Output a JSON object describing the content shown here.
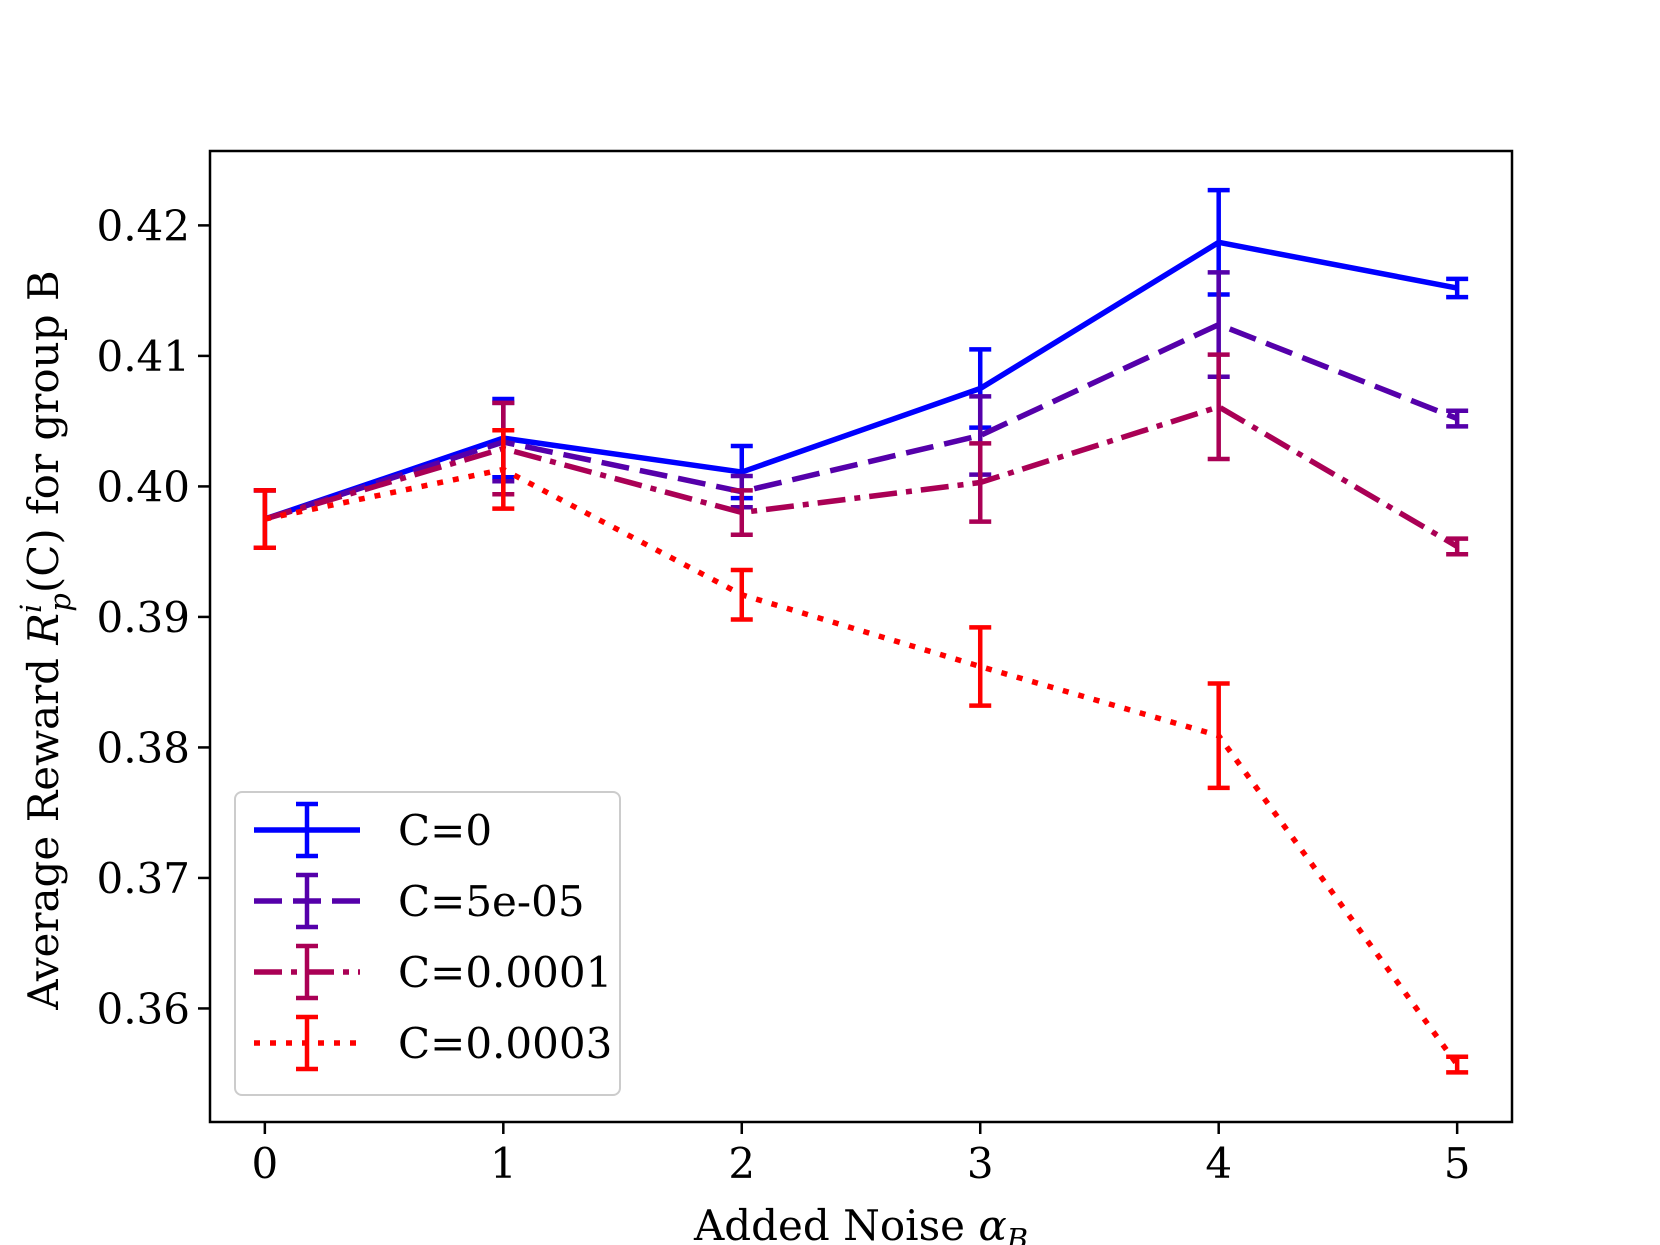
{
  "chart_data": {
    "type": "line",
    "title": "",
    "xlabel_text": "Added Noise ",
    "xlabel_symbol": "α",
    "xlabel_subscript": "B",
    "ylabel_prefix": "Average Reward ",
    "ylabel_symbol": "R",
    "ylabel_superscript": "i",
    "ylabel_subscript": "p",
    "ylabel_suffix": "(C) for group B",
    "x": [
      0,
      1,
      2,
      3,
      4,
      5
    ],
    "x_ticks": [
      "0",
      "1",
      "2",
      "3",
      "4",
      "5"
    ],
    "xlim": [
      -0.23,
      5.23
    ],
    "y_ticks": [
      0.36,
      0.37,
      0.38,
      0.39,
      0.4,
      0.41,
      0.42
    ],
    "y_tick_labels": [
      "0.36",
      "0.37",
      "0.38",
      "0.39",
      "0.40",
      "0.41",
      "0.42"
    ],
    "ylim": [
      0.3513,
      0.4257
    ],
    "grid": false,
    "legend_position": "lower-left",
    "series": [
      {
        "name": "C=0",
        "color": "#0000ff",
        "style": "solid",
        "values": [
          0.3975,
          0.4037,
          0.4011,
          0.4075,
          0.4187,
          0.4152
        ],
        "errors": [
          0.0022,
          0.003,
          0.002,
          0.003,
          0.004,
          0.0007
        ]
      },
      {
        "name": "C=5e-05",
        "color": "#5500aa",
        "style": "dashed",
        "values": [
          0.3975,
          0.4034,
          0.3996,
          0.4039,
          0.4124,
          0.4052
        ],
        "errors": [
          0.0022,
          0.003,
          0.0012,
          0.003,
          0.004,
          0.0006
        ]
      },
      {
        "name": "C=0.0001",
        "color": "#aa0055",
        "style": "dashdot",
        "values": [
          0.3975,
          0.4029,
          0.398,
          0.4003,
          0.4061,
          0.3954
        ],
        "errors": [
          0.0022,
          0.0035,
          0.0017,
          0.003,
          0.004,
          0.0006
        ]
      },
      {
        "name": "C=0.0003",
        "color": "#ff0000",
        "style": "dotted",
        "values": [
          0.3975,
          0.4013,
          0.3917,
          0.3862,
          0.3809,
          0.3557
        ],
        "errors": [
          0.0022,
          0.003,
          0.0019,
          0.003,
          0.004,
          0.0006
        ]
      }
    ]
  }
}
